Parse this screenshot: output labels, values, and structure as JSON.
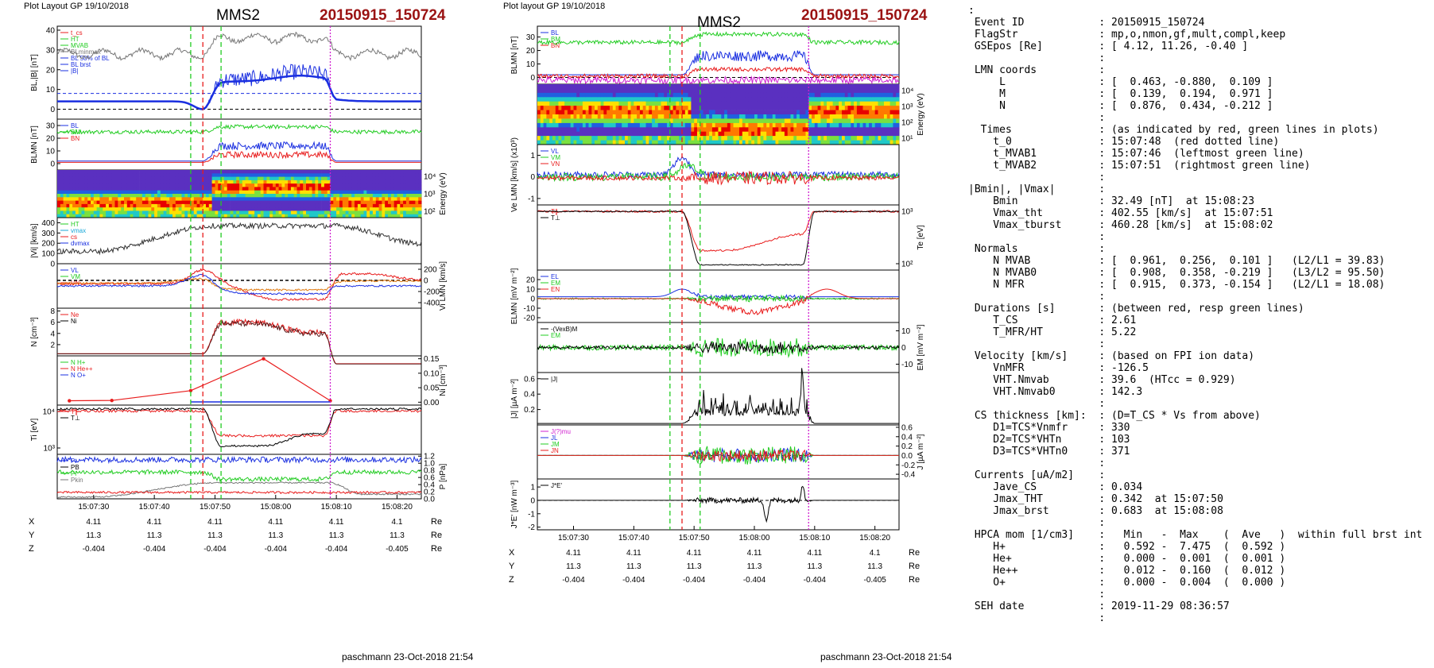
{
  "page": {
    "left_header": "Plot Layout GP 19/10/2018",
    "center_header": "Plot layout GP 19/10/2018",
    "spacecraft": "MMS2",
    "event_label": "20150915_150724",
    "footer": "paschmann 23-Oct-2018 21:54"
  },
  "colors": {
    "black": "#000000",
    "red": "#e81c1c",
    "green": "#22cc22",
    "blue": "#1a2fe0",
    "magenta": "#d020d0",
    "gray": "#777777",
    "orange": "#e07a10",
    "cyan": "#18a8d8"
  },
  "chart_data": [
    {
      "type": "line",
      "panel": "left",
      "time_ticks": [
        "15:07:30",
        "15:07:40",
        "15:07:50",
        "15:08:00",
        "15:08:10",
        "15:08:20"
      ],
      "markers": [
        {
          "color": "green",
          "style": "dashed",
          "t": "15:07:46"
        },
        {
          "color": "red",
          "style": "dashed",
          "t": "15:07:48"
        },
        {
          "color": "green",
          "style": "dashed",
          "t": "15:07:51"
        },
        {
          "color": "magenta",
          "style": "dotted",
          "t": "15:08:09"
        }
      ],
      "ephemeris": {
        "rows": [
          {
            "name": "X",
            "values": [
              "4.11",
              "4.11",
              "4.11",
              "4.11",
              "4.11",
              "4.1"
            ],
            "unit": "Re"
          },
          {
            "name": "Y",
            "values": [
              "11.3",
              "11.3",
              "11.3",
              "11.3",
              "11.3",
              "11.3"
            ],
            "unit": "Re"
          },
          {
            "name": "Z",
            "values": [
              "-0.404",
              "-0.404",
              "-0.404",
              "-0.404",
              "-0.404",
              "-0.405"
            ],
            "unit": "Re"
          }
        ]
      },
      "panels": [
        {
          "ylabel": "BL,|B| [nT]",
          "ylim": [
            -5,
            42
          ],
          "yticks": [
            "40",
            "30",
            "20",
            "10",
            "0"
          ],
          "legend": [
            "t_cs",
            "HT",
            "MVAB",
            "BLminmax",
            "BL 50% of BL",
            "BL brst",
            "|B|"
          ]
        },
        {
          "ylabel": "BLMN [nT]",
          "ylim": [
            -5,
            35
          ],
          "yticks": [
            "30",
            "20",
            "10",
            "0"
          ],
          "legend": [
            "BL",
            "BM",
            "BN"
          ]
        },
        {
          "ylabel": "Energy (eV)",
          "type": "heatmap",
          "yticks": [
            "10⁴",
            "10³",
            "10²"
          ]
        },
        {
          "ylabel": "|Vi| [km/s]",
          "ylim": [
            0,
            450
          ],
          "yticks": [
            "400",
            "300",
            "200",
            "100",
            "0"
          ],
          "legend": [
            "HT",
            "vmax",
            "cs",
            "dvmax"
          ]
        },
        {
          "ylabel": "Vi LMN [km/s]",
          "ylim": [
            -500,
            300
          ],
          "yticks": [
            "200",
            "0",
            "-200",
            "-400"
          ],
          "legend": [
            "VL",
            "VM",
            "VN"
          ]
        },
        {
          "ylabel": "N [cm⁻³]",
          "ylim": [
            0,
            8.5
          ],
          "yticks": [
            "8",
            "6",
            "4",
            "2"
          ],
          "legend": [
            "Ne",
            "Ni"
          ]
        },
        {
          "ylabel": "Ni [cm⁻³]",
          "ylim": [
            -0.01,
            0.16
          ],
          "yticks": [
            "0.15",
            "0.10",
            "0.05",
            "0.00"
          ],
          "legend": [
            "N H+",
            "N He++",
            "N O+"
          ]
        },
        {
          "ylabel": "Ti [eV]",
          "yticks": [
            "10⁴",
            "10³"
          ],
          "legend": [
            "T∥",
            "T⊥"
          ]
        },
        {
          "ylabel": "P [nPa]",
          "ylim": [
            0,
            1.25
          ],
          "yticks": [
            "1.2",
            "1.0",
            "0.8",
            "0.6",
            "0.4",
            "0.2",
            "0.0"
          ],
          "legend": [
            "Pt",
            "PB",
            "Pi",
            "Pkin"
          ]
        }
      ]
    },
    {
      "type": "line",
      "panel": "center",
      "time_ticks": [
        "15:07:30",
        "15:07:40",
        "15:07:50",
        "15:08:00",
        "15:08:10",
        "15:08:20"
      ],
      "markers": [
        {
          "color": "green",
          "style": "dashed",
          "t": "15:07:46"
        },
        {
          "color": "red",
          "style": "dashed",
          "t": "15:07:48"
        },
        {
          "color": "green",
          "style": "dashed",
          "t": "15:07:51"
        },
        {
          "color": "magenta",
          "style": "dotted",
          "t": "15:08:09"
        }
      ],
      "ephemeris": {
        "rows": [
          {
            "name": "X",
            "values": [
              "4.11",
              "4.11",
              "4.11",
              "4.11",
              "4.11",
              "4.1"
            ],
            "unit": "Re"
          },
          {
            "name": "Y",
            "values": [
              "11.3",
              "11.3",
              "11.3",
              "11.3",
              "11.3",
              "11.3"
            ],
            "unit": "Re"
          },
          {
            "name": "Z",
            "values": [
              "-0.404",
              "-0.404",
              "-0.404",
              "-0.404",
              "-0.404",
              "-0.405"
            ],
            "unit": "Re"
          }
        ]
      },
      "panels": [
        {
          "ylabel": "BLMN [nT]",
          "ylim": [
            -5,
            38
          ],
          "yticks": [
            "30",
            "20",
            "10",
            "0"
          ],
          "legend": [
            "BL",
            "BM",
            "BN"
          ]
        },
        {
          "ylabel": "Energy (eV)",
          "type": "heatmap",
          "yticks": [
            "10⁴",
            "10³",
            "10²",
            "10¹"
          ]
        },
        {
          "ylabel": "Ve LMN [km/s] (x10³)",
          "ylim": [
            -1.3,
            1.5
          ],
          "yticks": [
            "1",
            "0",
            "-1"
          ],
          "legend": [
            "VL",
            "VM",
            "VN"
          ]
        },
        {
          "ylabel": "Te [eV]",
          "yticks": [
            "10³",
            "10²"
          ],
          "legend": [
            "T∥",
            "T⊥"
          ]
        },
        {
          "ylabel": "ELMN [mV m⁻²]",
          "ylim": [
            -25,
            30
          ],
          "yticks": [
            "20",
            "10",
            "0",
            "-10",
            "-20"
          ],
          "legend": [
            "EL",
            "EM",
            "EN"
          ]
        },
        {
          "ylabel": "EM [mV m⁻²]",
          "ylim": [
            -15,
            15
          ],
          "yticks": [
            "10",
            "0",
            "-10"
          ],
          "legend": [
            "-(VexB)M",
            "EM"
          ]
        },
        {
          "ylabel": "|J| [µA m⁻²]",
          "ylim": [
            0,
            0.68
          ],
          "yticks": [
            "0.6",
            "0.4",
            "0.2"
          ],
          "legend": [
            "|J|"
          ]
        },
        {
          "ylabel": "J [µA m⁻²]",
          "ylim": [
            -0.5,
            0.65
          ],
          "yticks": [
            "0.6",
            "0.4",
            "0.2",
            "0.0",
            "-0.2",
            "-0.4"
          ],
          "legend": [
            "J(?)mu",
            "JL",
            "JM",
            "JN"
          ]
        },
        {
          "ylabel": "J*E' [nW m⁻³]",
          "ylim": [
            -2.2,
            1.6
          ],
          "yticks": [
            "1",
            "0",
            "-1",
            "-2"
          ],
          "legend": [
            "J*E'"
          ]
        }
      ]
    }
  ],
  "info_lines": [
    ":",
    " Event ID            : 20150915_150724",
    " FlagStr             : mp,o,nmon,gf,mult,compl,keep",
    " GSEpos [Re]         : [ 4.12, 11.26, -0.40 ]",
    "                     :",
    " LMN coords          :",
    "     L               : [  0.463, -0.880,  0.109 ]",
    "     M               : [  0.139,  0.194,  0.971 ]",
    "     N               : [  0.876,  0.434, -0.212 ]",
    "                     :",
    "  Times              : (as indicated by red, green lines in plots)",
    "    t_0              : 15:07:48  (red dotted line)",
    "    t_MVAB1          : 15:07:46  (leftmost green line)",
    "    t_MVAB2          : 15:07:51  (rightmost green line)",
    "                     :",
    "|Bmin|, |Vmax|       :",
    "    Bmin             : 32.49 [nT]  at 15:08:23",
    "    Vmax_tht         : 402.55 [km/s]  at 15:07:51",
    "    Vmax_tburst      : 460.28 [km/s]  at 15:08:02",
    "                     :",
    " Normals             :",
    "    N MVAB           : [  0.961,  0.256,  0.101 ]   (L2/L1 = 39.83)",
    "    N MVAB0          : [  0.908,  0.358, -0.219 ]   (L3/L2 = 95.50)",
    "    N MFR            : [  0.915,  0.373, -0.154 ]   (L2/L1 = 18.08)",
    "                     :",
    " Durations [s]       : (between red, resp green lines)",
    "    T_CS             : 2.61",
    "    T_MFR/HT         : 5.22",
    "                     :",
    " Velocity [km/s]     : (based on FPI ion data)",
    "    VnMFR            : -126.5",
    "    VHT.Nmvab        : 39.6  (HTcc = 0.929)",
    "    VHT.Nmvab0       : 142.3",
    "                     :",
    " CS thickness [km]:  : (D=T_CS * Vs from above)",
    "    D1=TCS*Vnmfr     : 330",
    "    D2=TCS*VHTn      : 103",
    "    D3=TCS*VHTn0     : 371",
    "                     :",
    " Currents [uA/m2]    :",
    "    Jave_CS          : 0.034",
    "    Jmax_THT         : 0.342  at 15:07:50",
    "    Jmax_brst        : 0.683  at 15:08:08",
    "                     :",
    " HPCA mom [1/cm3]    :   Min   -  Max    (  Ave   )  within full brst int",
    "    H+               :   0.592 -  7.475  (  0.592 )",
    "    He+              :   0.000 -  0.001  (  0.001 )",
    "    He++             :   0.012 -  0.160  (  0.012 )",
    "    O+               :   0.000 -  0.004  (  0.000 )",
    "                     :",
    " SEH date            : 2019-11-29 08:36:57",
    "                     :"
  ]
}
